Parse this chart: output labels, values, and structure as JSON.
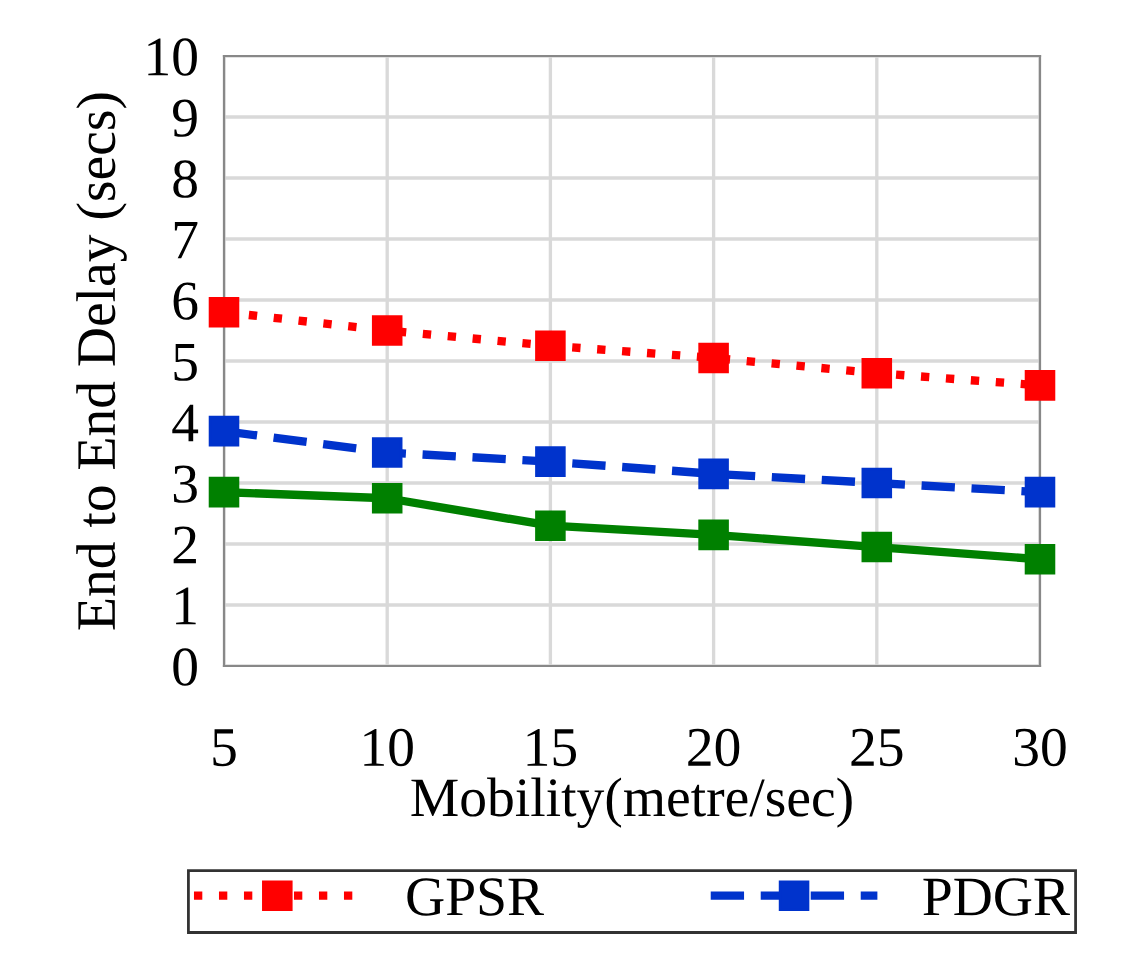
{
  "chart_data": {
    "type": "line",
    "xlabel": "Mobility(metre/sec)",
    "ylabel": "End to End Delay (secs)",
    "x": [
      5,
      10,
      15,
      20,
      25,
      30
    ],
    "series": [
      {
        "name": "GPSR",
        "color": "#ff0000",
        "line_style": "dotted",
        "values": [
          5.8,
          5.5,
          5.25,
          5.05,
          4.8,
          4.6
        ]
      },
      {
        "name": "PDGR",
        "color": "#0033cc",
        "line_style": "dashed",
        "values": [
          3.85,
          3.5,
          3.35,
          3.15,
          3.0,
          2.85
        ]
      },
      {
        "color": "#008000",
        "line_style": "solid",
        "values": [
          2.85,
          2.75,
          2.3,
          2.15,
          1.95,
          1.75
        ]
      }
    ],
    "xlim": [
      5,
      30
    ],
    "xticks": [
      5,
      10,
      15,
      20,
      25,
      30
    ],
    "ylim": [
      0,
      10
    ],
    "yticks": [
      0,
      1,
      2,
      3,
      4,
      5,
      6,
      7,
      8,
      9,
      10
    ],
    "grid": true,
    "legend": "bottom",
    "marker": "square"
  }
}
